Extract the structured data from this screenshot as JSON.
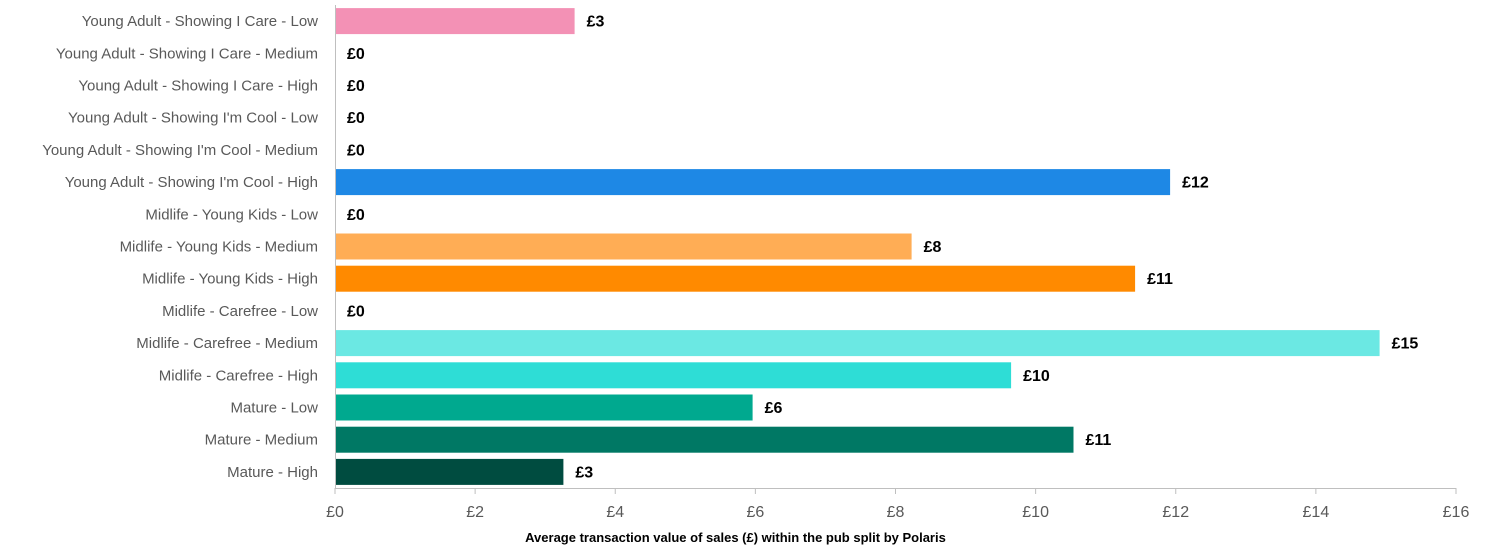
{
  "chart_data": {
    "type": "bar",
    "orientation": "horizontal",
    "categories": [
      "Young Adult - Showing I Care - Low",
      "Young Adult - Showing I Care - Medium",
      "Young Adult - Showing I Care - High",
      "Young Adult - Showing I'm Cool - Low",
      "Young Adult - Showing I'm Cool - Medium",
      "Young Adult - Showing I'm Cool - High",
      "Midlife - Young Kids - Low",
      "Midlife - Young Kids - Medium",
      "Midlife - Young Kids - High",
      "Midlife - Carefree - Low",
      "Midlife - Carefree - Medium",
      "Midlife - Carefree - High",
      "Mature - Low",
      "Mature - Medium",
      "Mature - High"
    ],
    "values": [
      3.42,
      0,
      0,
      0,
      0,
      11.92,
      0,
      8.23,
      11.42,
      0,
      14.91,
      9.65,
      5.96,
      10.54,
      3.26
    ],
    "data_labels": [
      "£3",
      "£0",
      "£0",
      "£0",
      "£0",
      "£12",
      "£0",
      "£8",
      "£11",
      "£0",
      "£15",
      "£10",
      "£6",
      "£11",
      "£3"
    ],
    "colors": [
      "#F391B5",
      "#FFFFFF",
      "#FFFFFF",
      "#FFFFFF",
      "#FFFFFF",
      "#1E88E5",
      "#FFFFFF",
      "#FFAD55",
      "#FF8A00",
      "#FFFFFF",
      "#6BE8E3",
      "#2EDDD6",
      "#00A98F",
      "#007864",
      "#004C40"
    ],
    "xlim": [
      0,
      16
    ],
    "x_ticks": [
      0,
      2,
      4,
      6,
      8,
      10,
      12,
      14,
      16
    ],
    "x_tick_labels": [
      "£0",
      "£2",
      "£4",
      "£6",
      "£8",
      "£10",
      "£12",
      "£14",
      "£16"
    ],
    "xlabel": "Average transaction value of sales (£) within the pub split by Polaris",
    "ylabel": "",
    "title": "",
    "grid": false,
    "legend": "none"
  }
}
